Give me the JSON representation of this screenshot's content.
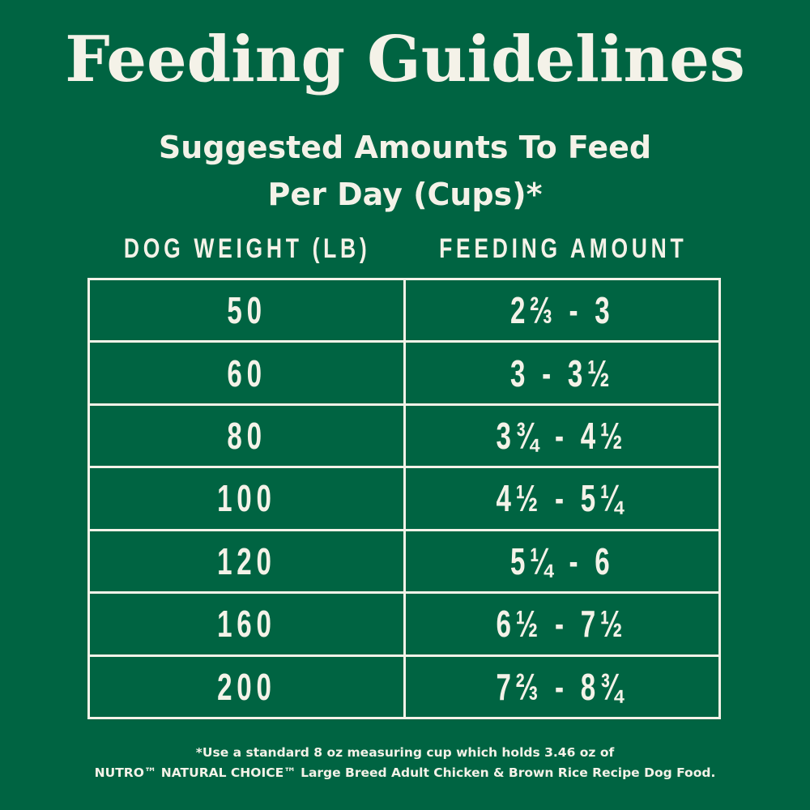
{
  "title": "Feeding Guidelines",
  "subtitle_line1": "Suggested Amounts To Feed",
  "subtitle_line2": "Per Day (Cups)*",
  "table": {
    "headers": [
      "DOG WEIGHT (LB)",
      "FEEDING AMOUNT"
    ],
    "rows": [
      {
        "weight": "50",
        "amount": "2⅔ - 3"
      },
      {
        "weight": "60",
        "amount": "3 - 3½"
      },
      {
        "weight": "80",
        "amount": "3¾ - 4½"
      },
      {
        "weight": "100",
        "amount": "4½ - 5¼"
      },
      {
        "weight": "120",
        "amount": "5¼ - 6"
      },
      {
        "weight": "160",
        "amount": "6½ - 7½"
      },
      {
        "weight": "200",
        "amount": "7⅔ - 8¾"
      }
    ]
  },
  "footnote_line1": "*Use a standard 8 oz measuring cup which holds 3.46 oz of",
  "footnote_line2": "NUTRO™ NATURAL CHOICE™ Large Breed Adult Chicken & Brown Rice Recipe Dog Food.",
  "colors": {
    "background": "#006442",
    "text": "#f4f2e8"
  }
}
